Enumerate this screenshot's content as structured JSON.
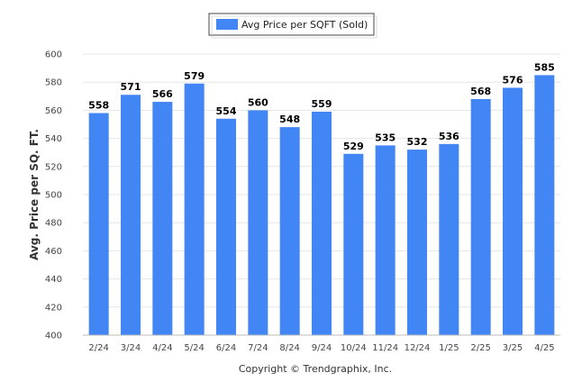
{
  "chart_data": {
    "type": "bar",
    "categories": [
      "2/24",
      "3/24",
      "4/24",
      "5/24",
      "6/24",
      "7/24",
      "8/24",
      "9/24",
      "10/24",
      "11/24",
      "12/24",
      "1/25",
      "2/25",
      "3/25",
      "4/25"
    ],
    "series": [
      {
        "name": "Avg Price per SQFT (Sold)",
        "values": [
          558,
          571,
          566,
          579,
          554,
          560,
          548,
          559,
          529,
          535,
          532,
          536,
          568,
          576,
          585
        ]
      }
    ],
    "ylabel": "Avg. Price per SQ. FT.",
    "xlabel": "",
    "ylim": [
      400,
      600
    ],
    "yticks": [
      400,
      420,
      440,
      460,
      480,
      500,
      520,
      540,
      560,
      580,
      600
    ],
    "grid": true,
    "legend_position": "top-center",
    "bar_color": "#4285f4",
    "footer": "Copyright © Trendgraphix, Inc."
  }
}
